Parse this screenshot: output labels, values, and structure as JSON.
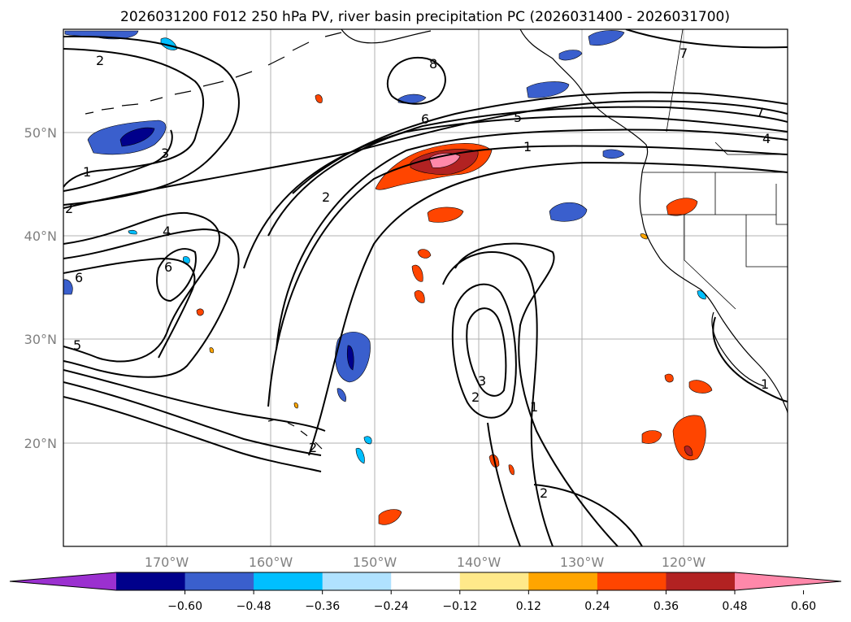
{
  "title": "2026031200 F012 250 hPa PV, river basin precipitation PC (2026031400 - 2026031700)",
  "longitude_labels": [
    "170°W",
    "160°W",
    "150°W",
    "140°W",
    "130°W",
    "120°W"
  ],
  "latitude_labels": [
    "50°N",
    "40°N",
    "30°N",
    "20°N"
  ],
  "colorbar": {
    "tick_labels": [
      "−0.60",
      "−0.48",
      "−0.36",
      "−0.24",
      "−0.12",
      "0.12",
      "0.24",
      "0.36",
      "0.48",
      "0.60"
    ],
    "colors": [
      "#9b30d0",
      "#00008b",
      "#3a5fcd",
      "#00bfff",
      "#b0e2ff",
      "#ffffff",
      "#ffe98a",
      "#ffa500",
      "#ff4500",
      "#b22222",
      "#ff88aa"
    ]
  },
  "contour_labels": [
    "2",
    "8",
    "7",
    "6",
    "5",
    "1",
    "7",
    "4",
    "1",
    "3",
    "2",
    "2",
    "4",
    "6",
    "6",
    "5",
    "2",
    "3",
    "2",
    "1",
    "2",
    "1"
  ]
}
